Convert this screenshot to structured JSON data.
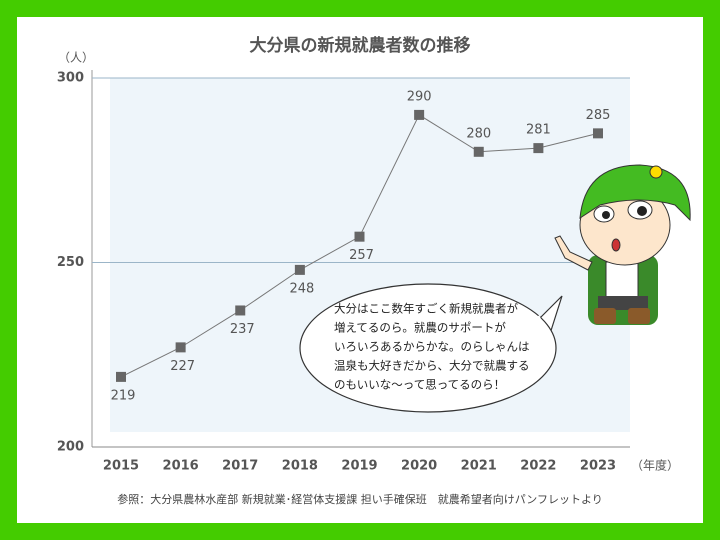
{
  "chart_data": {
    "type": "line",
    "title": "大分県の新規就農者数の推移",
    "y_unit": "（人）",
    "x_unit": "（年度）",
    "categories": [
      "2015",
      "2016",
      "2017",
      "2018",
      "2019",
      "2020",
      "2021",
      "2022",
      "2023"
    ],
    "values": [
      219,
      227,
      237,
      248,
      257,
      290,
      280,
      281,
      285
    ],
    "color": "#666666",
    "ylim": [
      200,
      300
    ],
    "yticks": [
      200,
      250,
      300
    ],
    "grid": true,
    "speech_bubble": [
      "大分はここ数年すごく新規就農者が",
      "増えてるのら。就農のサポートが",
      "いろいろあるからかな。のらしゃんは",
      "温泉も大好きだから、大分で就農する",
      "のもいいな～って思ってるのら！"
    ],
    "source": "参照：大分県農林水産部 新規就業･経営体支援課 担い手確保班　就農希望者向けパンフレットより"
  }
}
